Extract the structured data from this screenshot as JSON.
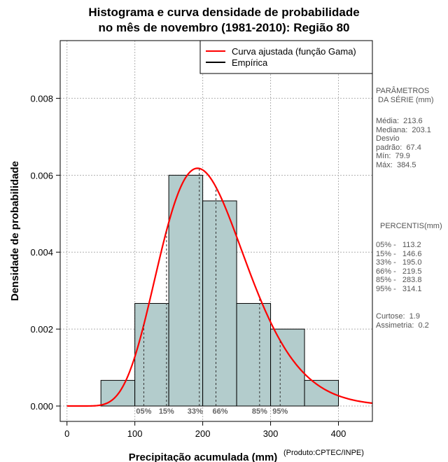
{
  "chart_data": {
    "type": "histogram",
    "title_line1": "Histograma e curva densidade de probabilidade",
    "title_line2": "no mês de novembro (1981-2010): Região 80",
    "xlabel": "Precipitação acumulada (mm)",
    "ylabel": "Densidade de probabilidade",
    "xlim": [
      -10,
      450
    ],
    "ylim": [
      -0.0004,
      0.0095
    ],
    "x_ticks": [
      0,
      100,
      200,
      300,
      400
    ],
    "x_tick_labels": [
      "0",
      "100",
      "200",
      "300",
      "400"
    ],
    "y_ticks": [
      0,
      0.002,
      0.004,
      0.006,
      0.008
    ],
    "y_tick_labels": [
      "0.000",
      "0.002",
      "0.004",
      "0.006",
      "0.008"
    ],
    "grid": true,
    "bins": [
      {
        "start": 50,
        "end": 100,
        "density": 0.000667
      },
      {
        "start": 100,
        "end": 150,
        "density": 0.002667
      },
      {
        "start": 150,
        "end": 200,
        "density": 0.006
      },
      {
        "start": 200,
        "end": 250,
        "density": 0.005333
      },
      {
        "start": 250,
        "end": 300,
        "density": 0.002667
      },
      {
        "start": 300,
        "end": 350,
        "density": 0.002
      },
      {
        "start": 350,
        "end": 400,
        "density": 0.000667
      }
    ],
    "bar_color": "#b3cccc",
    "curve_color": "#ff0000",
    "gamma_fit": {
      "mean": 213.6,
      "sd": 67.4
    },
    "legend": [
      {
        "label": "Curva ajustada (função Gama)",
        "color": "#ff0000"
      },
      {
        "label": "Empírica",
        "color": "#000000"
      }
    ],
    "legend_position": "top-right",
    "percentiles": [
      {
        "label": "05%",
        "value": 113.2
      },
      {
        "label": "15%",
        "value": 146.6
      },
      {
        "label": "33%",
        "value": 195.0
      },
      {
        "label": "66%",
        "value": 219.5
      },
      {
        "label": "85%",
        "value": 283.8
      },
      {
        "label": "95%",
        "value": 314.1
      }
    ]
  },
  "side_panel": {
    "params_header": "PARÂMETROS\n DA SÉRIE (mm)",
    "params_body": "Média:  213.6\nMediana:  203.1\nDesvio\npadrão:  67.4\nMín:  79.9\nMáx:  384.5",
    "percentis_header": "PERCENTIS(mm)",
    "percentis_body": "05% -   113.2\n15% -   146.6\n33% -   195.0\n66% -   219.5\n85% -   283.8\n95% -   314.1",
    "stats_body": "Curtose:  1.9\nAssimetria:  0.2"
  },
  "credit": "(Produto:CPTEC/INPE)"
}
